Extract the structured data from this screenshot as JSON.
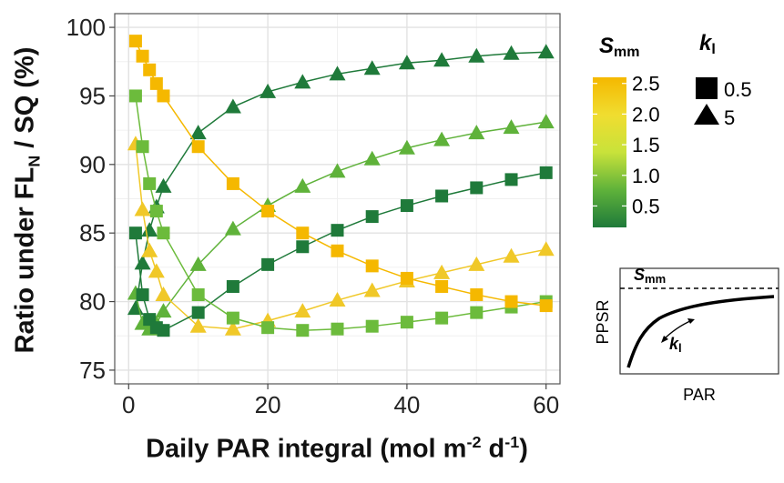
{
  "chart_data": {
    "type": "line",
    "xlabel_parts": {
      "text": "Daily PAR integral (mol m",
      "sup1": "-2",
      "mid": " d",
      "sup2": "-1",
      "end": ")"
    },
    "ylabel_parts": {
      "text": "Ratio under FL",
      "sub": "N",
      "end": " / SQ (%)"
    },
    "xlim": [
      -2,
      62
    ],
    "ylim": [
      74,
      101
    ],
    "x_ticks": [
      "0",
      "20",
      "40",
      "60"
    ],
    "y_ticks": [
      "75",
      "80",
      "85",
      "90",
      "95",
      "100"
    ],
    "grid": true,
    "colorbar": {
      "title_main": "S",
      "title_sub": "mm",
      "ticks": [
        "2.5",
        "2.0",
        "1.5",
        "1.0",
        "0.5"
      ],
      "colors": [
        "#f5b800",
        "#f0dd30",
        "#c8e23a",
        "#5fb23a",
        "#1f7a3a"
      ]
    },
    "shape_legend": {
      "title_main": "k",
      "title_sub": "l",
      "entries": [
        {
          "shape": "square",
          "label": "0.5"
        },
        {
          "shape": "triangle",
          "label": "5"
        }
      ]
    },
    "series": [
      {
        "marker": "triangle",
        "color": "#1f7a3a",
        "x": [
          1,
          2,
          3,
          4,
          5,
          10,
          15,
          20,
          25,
          30,
          35,
          40,
          45,
          50,
          55,
          60
        ],
        "y": [
          79.5,
          82.8,
          85.2,
          86.9,
          88.4,
          92.3,
          94.2,
          95.3,
          96.0,
          96.6,
          97.0,
          97.4,
          97.6,
          97.9,
          98.1,
          98.2
        ]
      },
      {
        "marker": "triangle",
        "color": "#5fb23a",
        "x": [
          1,
          2,
          3,
          4,
          5,
          10,
          15,
          20,
          25,
          30,
          35,
          40,
          45,
          50,
          55,
          60
        ],
        "y": [
          80.6,
          78.4,
          78.0,
          78.4,
          79.3,
          82.7,
          85.3,
          87.0,
          88.4,
          89.5,
          90.4,
          91.2,
          91.8,
          92.3,
          92.7,
          93.1
        ]
      },
      {
        "marker": "triangle",
        "color": "#f0c828",
        "x": [
          1,
          2,
          3,
          4,
          5,
          10,
          15,
          20,
          25,
          30,
          35,
          40,
          45,
          50,
          55,
          60
        ],
        "y": [
          91.5,
          86.7,
          83.7,
          82.2,
          80.5,
          78.2,
          78.0,
          78.6,
          79.3,
          80.1,
          80.8,
          81.5,
          82.1,
          82.7,
          83.3,
          83.8
        ]
      },
      {
        "marker": "square",
        "color": "#1f7a3a",
        "x": [
          1,
          2,
          3,
          4,
          5,
          10,
          15,
          20,
          25,
          30,
          35,
          40,
          45,
          50,
          55,
          60
        ],
        "y": [
          85.0,
          80.5,
          78.7,
          78.1,
          77.9,
          79.2,
          81.1,
          82.7,
          84.0,
          85.2,
          86.2,
          87.0,
          87.7,
          88.3,
          88.9,
          89.4
        ]
      },
      {
        "marker": "square",
        "color": "#6cbb3c",
        "x": [
          1,
          2,
          3,
          4,
          5,
          10,
          15,
          20,
          25,
          30,
          35,
          40,
          45,
          50,
          55,
          60
        ],
        "y": [
          95.0,
          91.3,
          88.6,
          86.6,
          85.0,
          80.5,
          78.8,
          78.1,
          77.9,
          78.0,
          78.2,
          78.5,
          78.8,
          79.2,
          79.6,
          80.0
        ]
      },
      {
        "marker": "square",
        "color": "#f5b800",
        "x": [
          1,
          2,
          3,
          4,
          5,
          10,
          15,
          20,
          25,
          30,
          35,
          40,
          45,
          50,
          55,
          60
        ],
        "y": [
          99.0,
          97.9,
          96.9,
          95.9,
          95.0,
          91.3,
          88.6,
          86.6,
          85.0,
          83.7,
          82.6,
          81.7,
          81.1,
          80.5,
          80.0,
          79.7
        ]
      }
    ],
    "inset": {
      "smm_main": "S",
      "smm_sub": "mm",
      "ylabel": "PPSR",
      "xlabel": "PAR",
      "kl_main": "k",
      "kl_sub": "l"
    }
  }
}
